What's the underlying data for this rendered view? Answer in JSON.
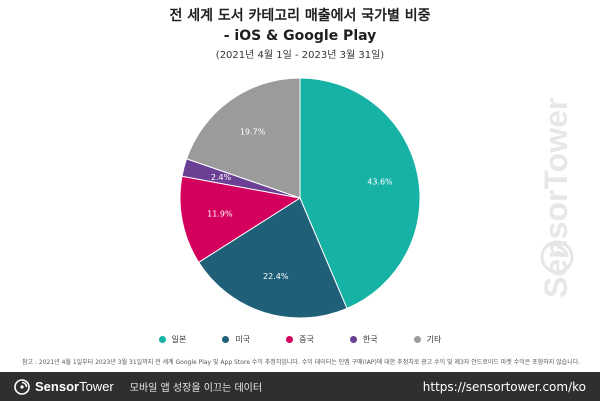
{
  "title_line1": "전 세계 도서 카테고리 매출에서 국가별 비중",
  "title_line2": "- iOS & Google Play",
  "subtitle": "(2021년 4월 1일 - 2023년 3월 31일)",
  "chart_data": {
    "type": "pie",
    "categories": [
      "일본",
      "미국",
      "중국",
      "한국",
      "기타"
    ],
    "values": [
      43.6,
      22.4,
      11.9,
      2.4,
      19.7
    ],
    "value_labels": [
      "43.6%",
      "22.4%",
      "11.9%",
      "2.4%",
      "19.7%"
    ],
    "colors": [
      "#16b2a5",
      "#1f5f78",
      "#d4005d",
      "#6b3f93",
      "#9b9b9b"
    ],
    "start_angle_deg": 0,
    "direction": "clockwise",
    "legend_position": "bottom"
  },
  "note": "참고 : 2021년 4월 1일부터 2023년 3월 31일까지 전 세계 Google Play 및 App Store 수익 추정치입니다. 수익 데이터는 인앱 구매(IAP)에 대한 추정치로 광고 수익 및 제3자 안드로이드 마켓 수익은 포함하지 않습니다.",
  "watermark": "SensorTower",
  "footer": {
    "brand_first": "Sensor",
    "brand_second": "Tower",
    "tagline": "모바일 앱 성장을 이끄는 데이터",
    "url": "https://sensortower.com/ko"
  }
}
